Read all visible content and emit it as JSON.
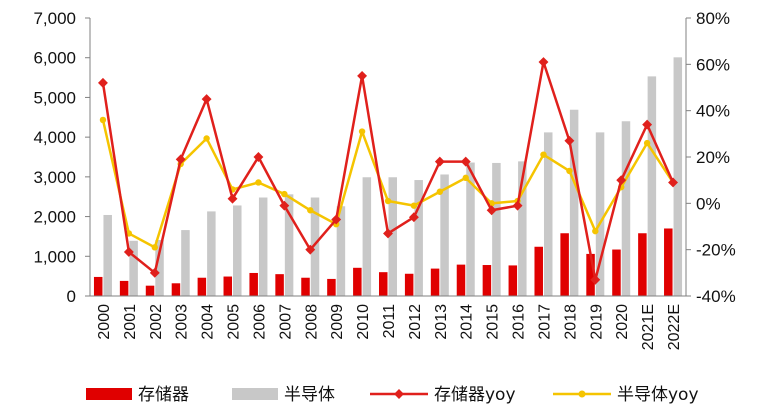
{
  "chart_data": {
    "type": "bar",
    "categories": [
      "2000",
      "2001",
      "2002",
      "2003",
      "2004",
      "2005",
      "2006",
      "2007",
      "2008",
      "2009",
      "2010",
      "2011",
      "2012",
      "2013",
      "2014",
      "2015",
      "2016",
      "2017",
      "2018",
      "2019",
      "2020",
      "2021E",
      "2022E"
    ],
    "series": [
      {
        "name": "存储器",
        "type": "bar",
        "axis": "left",
        "color": "#e00000",
        "values": [
          480,
          380,
          260,
          320,
          460,
          490,
          580,
          550,
          460,
          430,
          710,
          600,
          560,
          690,
          790,
          780,
          770,
          1240,
          1580,
          1060,
          1170,
          1580,
          1700
        ]
      },
      {
        "name": "半导体",
        "type": "bar",
        "axis": "left",
        "color": "#c8c8c8",
        "values": [
          2040,
          1390,
          1410,
          1660,
          2130,
          2280,
          2480,
          2560,
          2480,
          2260,
          2990,
          2990,
          2920,
          3060,
          3360,
          3350,
          3390,
          4120,
          4690,
          4120,
          4400,
          5530,
          6010
        ]
      },
      {
        "name": "存储器yoy",
        "type": "line",
        "axis": "right",
        "color": "#e0201c",
        "values": [
          52,
          -21,
          -30,
          19,
          45,
          2,
          20,
          -1,
          -20,
          -7,
          55,
          -13,
          -6,
          18,
          18,
          -3,
          -1,
          61,
          27,
          -33,
          10,
          34,
          9
        ]
      },
      {
        "name": "半导体yoy",
        "type": "line",
        "axis": "right",
        "color": "#f5c400",
        "values": [
          36,
          -13,
          -19,
          17,
          28,
          6,
          9,
          4,
          -3,
          -9,
          31,
          1,
          -1,
          5,
          11,
          0,
          1,
          21,
          14,
          -12,
          7,
          26,
          9
        ]
      }
    ],
    "y_left": {
      "min": 0,
      "max": 7000,
      "step": 1000,
      "tick_labels": [
        "0",
        "1,000",
        "2,000",
        "3,000",
        "4,000",
        "5,000",
        "6,000",
        "7,000"
      ]
    },
    "y_right": {
      "min": -40,
      "max": 80,
      "step": 20,
      "tick_labels": [
        "-40%",
        "-20%",
        "0%",
        "20%",
        "40%",
        "60%",
        "80%"
      ]
    },
    "title": "",
    "xlabel": "",
    "ylabel": "",
    "grid": false,
    "legend_position": "bottom"
  }
}
